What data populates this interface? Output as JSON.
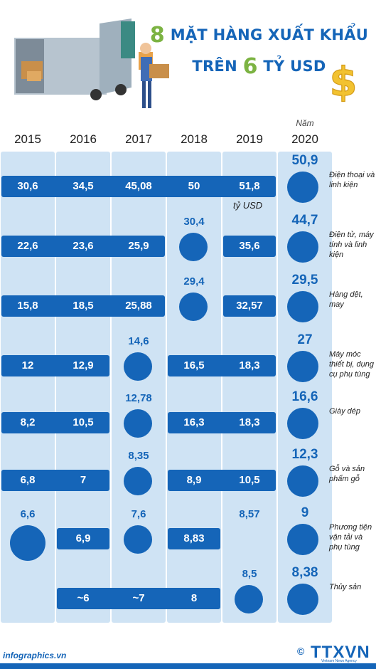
{
  "header": {
    "title_line1_num": "8",
    "title_line1_text": "MẶT HÀNG XUẤT KHẨU",
    "title_line2_pre": "TRÊN",
    "title_line2_num": "6",
    "title_line2_post": "TỶ USD"
  },
  "years": [
    "2015",
    "2016",
    "2017",
    "2018",
    "2019",
    "2020"
  ],
  "year_note": "Năm",
  "unit": "tỷ USD",
  "footer": {
    "site": "infographics.vn",
    "brand": "TTXVN",
    "brand_sub": "Vietnam News Agency",
    "copyright": "©"
  },
  "colors": {
    "accent": "#1565b8",
    "column": "#cfe3f4",
    "highlight": "#7cb342"
  },
  "chart_data": {
    "type": "bar",
    "title": "8 MẶT HÀNG XUẤT KHẨU TRÊN 6 TỶ USD",
    "unit": "tỷ USD",
    "categories": [
      "2015",
      "2016",
      "2017",
      "2018",
      "2019",
      "2020"
    ],
    "series": [
      {
        "name": "Điện thoại và linh kiện",
        "values": [
          "30,6",
          "34,5",
          "45,08",
          "50",
          "51,8",
          "50,9"
        ]
      },
      {
        "name": "Điện tử, máy tính và linh kiện",
        "values": [
          "22,6",
          "23,6",
          "25,9",
          "30,4",
          "35,6",
          "44,7"
        ]
      },
      {
        "name": "Hàng dệt, may",
        "values": [
          "15,8",
          "18,5",
          "25,88",
          "29,4",
          "32,57",
          "29,5"
        ]
      },
      {
        "name": "Máy móc thiết bị, dụng cụ phụ tùng",
        "values": [
          "12",
          "12,9",
          "14,6",
          "16,5",
          "18,3",
          "27"
        ]
      },
      {
        "name": "Giày dép",
        "values": [
          "8,2",
          "10,5",
          "12,78",
          "16,3",
          "18,3",
          "16,6"
        ]
      },
      {
        "name": "Gỗ và sản phẩm gỗ",
        "values": [
          "6,8",
          "7",
          "8,35",
          "8,9",
          "10,5",
          "12,3"
        ]
      },
      {
        "name": "Phương tiện vận tải và phụ tùng",
        "values": [
          "6,6",
          "6,9",
          "7,6",
          "8,83",
          "8,57",
          "9"
        ]
      },
      {
        "name": "Thủy sản",
        "values": [
          "",
          "~6",
          "~7",
          "8",
          "8,5",
          "8,38"
        ]
      }
    ]
  },
  "rows": [
    {
      "category": "Điện thoại và linh kiện",
      "bars": [
        {
          "v": "30,6"
        },
        {
          "v": "34,5"
        },
        {
          "v": "45,08"
        },
        {
          "v": "50"
        },
        {
          "v": "51,8"
        }
      ],
      "top2020": "50,9"
    },
    {
      "category": "Điện tử, máy tính và linh kiện",
      "bars": [
        {
          "v": "22,6"
        },
        {
          "v": "23,6"
        },
        {
          "v": "25,9"
        },
        {
          "v": "35,6"
        }
      ],
      "top2018": "30,4",
      "top2020": "44,7"
    },
    {
      "category": "Hàng dệt, may",
      "bars": [
        {
          "v": "15,8"
        },
        {
          "v": "18,5"
        },
        {
          "v": "25,88"
        },
        {
          "v": "32,57"
        }
      ],
      "top2018": "29,4",
      "top2020": "29,5"
    },
    {
      "category": "Máy móc thiết bị, dụng cụ phụ tùng",
      "bars": [
        {
          "v": "12"
        },
        {
          "v": "12,9"
        },
        {
          "v": "16,5"
        },
        {
          "v": "18,3"
        }
      ],
      "top2017": "14,6",
      "top2020": "27"
    },
    {
      "category": "Giày dép",
      "bars": [
        {
          "v": "8,2"
        },
        {
          "v": "10,5"
        },
        {
          "v": "16,3"
        },
        {
          "v": "18,3"
        }
      ],
      "top2017": "12,78",
      "top2020": "16,6"
    },
    {
      "category": "Gỗ và sản phẩm gỗ",
      "bars": [
        {
          "v": "6,8"
        },
        {
          "v": "7"
        },
        {
          "v": "8,9"
        },
        {
          "v": "10,5"
        }
      ],
      "top2017": "8,35",
      "top2020": "12,3"
    },
    {
      "category": "Phương tiện vận tải và phụ tùng",
      "bars": [
        {
          "v": "6,9"
        },
        {
          "v": "8,83"
        }
      ],
      "top2015": "6,6",
      "top2017": "7,6",
      "top2019": "8,57",
      "top2020": "9"
    },
    {
      "category": "Thủy sản",
      "bars": [
        {
          "v": "~6"
        },
        {
          "v": "~7"
        },
        {
          "v": "8"
        }
      ],
      "top2019": "8,5",
      "top2020": "8,38"
    }
  ]
}
